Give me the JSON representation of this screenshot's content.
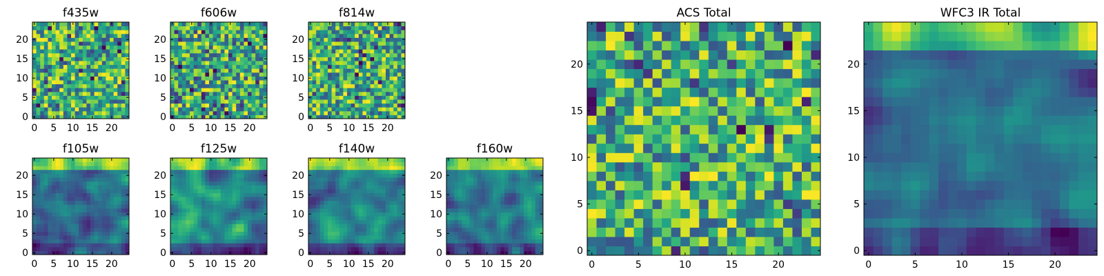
{
  "figure": {
    "description_note": "Grid of 25x25 heatmap stamps (viridis colormap) for several filters plus two coadded totals.",
    "colormap": "viridis"
  },
  "chart_data": [
    {
      "type": "heatmap",
      "title": "f435w",
      "grid": [
        25,
        25
      ],
      "xticks": [
        0,
        5,
        10,
        15,
        20
      ],
      "yticks": [
        0,
        5,
        10,
        15,
        20
      ],
      "seed": 11,
      "style": "noisy"
    },
    {
      "type": "heatmap",
      "title": "f606w",
      "grid": [
        25,
        25
      ],
      "xticks": [
        0,
        5,
        10,
        15,
        20
      ],
      "yticks": [
        0,
        5,
        10,
        15,
        20
      ],
      "seed": 23,
      "style": "noisy"
    },
    {
      "type": "heatmap",
      "title": "f814w",
      "grid": [
        25,
        25
      ],
      "xticks": [
        0,
        5,
        10,
        15,
        20
      ],
      "yticks": [
        0,
        5,
        10,
        15,
        20
      ],
      "seed": 37,
      "style": "noisy"
    },
    {
      "type": "heatmap",
      "title": "f105w",
      "grid": [
        25,
        25
      ],
      "xticks": [
        0,
        5,
        10,
        15,
        20
      ],
      "yticks": [
        0,
        5,
        10,
        15,
        20
      ],
      "seed": 41,
      "style": "smooth"
    },
    {
      "type": "heatmap",
      "title": "f125w",
      "grid": [
        25,
        25
      ],
      "xticks": [
        0,
        5,
        10,
        15,
        20
      ],
      "yticks": [
        0,
        5,
        10,
        15,
        20
      ],
      "seed": 53,
      "style": "smooth"
    },
    {
      "type": "heatmap",
      "title": "f140w",
      "grid": [
        25,
        25
      ],
      "xticks": [
        0,
        5,
        10,
        15,
        20
      ],
      "yticks": [
        0,
        5,
        10,
        15,
        20
      ],
      "seed": 67,
      "style": "smooth"
    },
    {
      "type": "heatmap",
      "title": "f160w",
      "grid": [
        25,
        25
      ],
      "xticks": [
        0,
        5,
        10,
        15,
        20
      ],
      "yticks": [
        0,
        5,
        10,
        15,
        20
      ],
      "seed": 79,
      "style": "smooth"
    },
    {
      "type": "heatmap",
      "title": "ACS Total",
      "grid": [
        25,
        25
      ],
      "xticks": [
        0,
        5,
        10,
        15,
        20
      ],
      "yticks": [
        0,
        5,
        10,
        15,
        20
      ],
      "seed": 97,
      "style": "noisy"
    },
    {
      "type": "heatmap",
      "title": "WFC3 IR Total",
      "grid": [
        25,
        25
      ],
      "xticks": [
        0,
        5,
        10,
        15,
        20
      ],
      "yticks": [
        0,
        5,
        10,
        15,
        20
      ],
      "seed": 113,
      "style": "smooth"
    }
  ]
}
